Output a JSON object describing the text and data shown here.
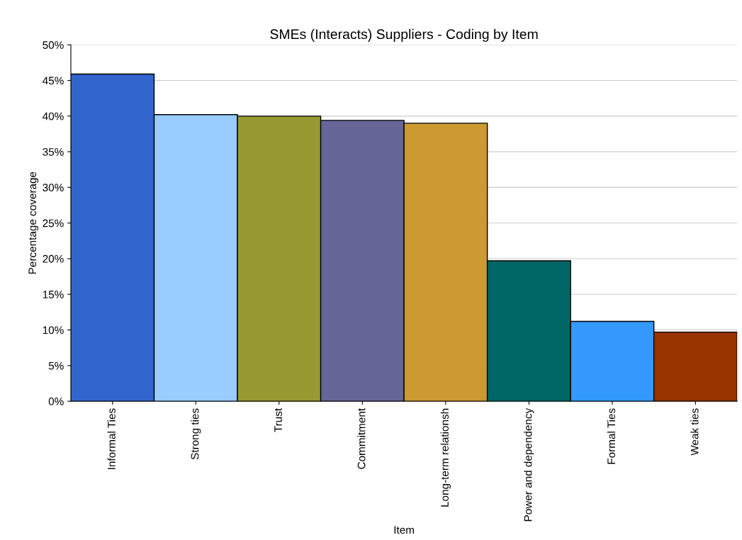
{
  "chart_data": {
    "type": "bar",
    "title": "SMEs (Interacts) Suppliers - Coding by Item",
    "xlabel": "Item",
    "ylabel": "Percentage coverage",
    "categories": [
      "Informal Ties",
      "Strong ties",
      "Trust",
      "Commitment",
      "Long-term relationsh",
      "Power and dependency",
      "Formal Ties",
      "Weak ties"
    ],
    "values": [
      45.9,
      40.2,
      40.0,
      39.4,
      39.0,
      19.7,
      11.2,
      9.7
    ],
    "colors": [
      "#3366cc",
      "#99ccff",
      "#999933",
      "#666699",
      "#cc9933",
      "#006666",
      "#3399ff",
      "#993300"
    ],
    "ylim": [
      0,
      50
    ],
    "yticks": [
      {
        "value": 0,
        "label": "0%"
      },
      {
        "value": 5,
        "label": "5%"
      },
      {
        "value": 10,
        "label": "10%"
      },
      {
        "value": 15,
        "label": "15%"
      },
      {
        "value": 20,
        "label": "20%"
      },
      {
        "value": 25,
        "label": "25%"
      },
      {
        "value": 30,
        "label": "30%"
      },
      {
        "value": 35,
        "label": "35%"
      },
      {
        "value": 40,
        "label": "40%"
      },
      {
        "value": 45,
        "label": "45%"
      },
      {
        "value": 50,
        "label": "50%"
      }
    ],
    "grid": "y"
  }
}
